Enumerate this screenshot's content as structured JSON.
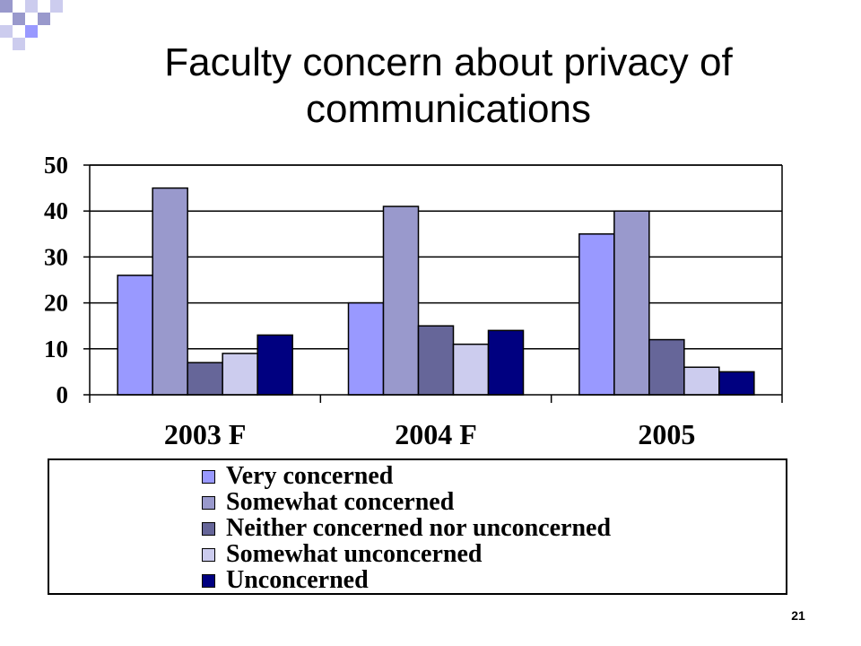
{
  "title": "Faculty concern about privacy of communications",
  "page_number": "21",
  "chart_data": {
    "type": "bar",
    "categories": [
      "2003 F",
      "2004 F",
      "2005"
    ],
    "series": [
      {
        "name": "Very concerned",
        "values": [
          26,
          20,
          35
        ],
        "color": "#9999ff"
      },
      {
        "name": "Somewhat concerned",
        "values": [
          45,
          41,
          40
        ],
        "color": "#9999cc"
      },
      {
        "name": "Neither concerned nor unconcerned",
        "values": [
          7,
          15,
          12
        ],
        "color": "#666699"
      },
      {
        "name": "Somewhat unconcerned",
        "values": [
          9,
          11,
          6
        ],
        "color": "#ccccee"
      },
      {
        "name": "Unconcerned",
        "values": [
          13,
          14,
          5
        ],
        "color": "#000080"
      }
    ],
    "ylim": [
      0,
      50
    ],
    "yticks": [
      0,
      10,
      20,
      30,
      40,
      50
    ],
    "grid": true,
    "legend_position": "bottom"
  }
}
